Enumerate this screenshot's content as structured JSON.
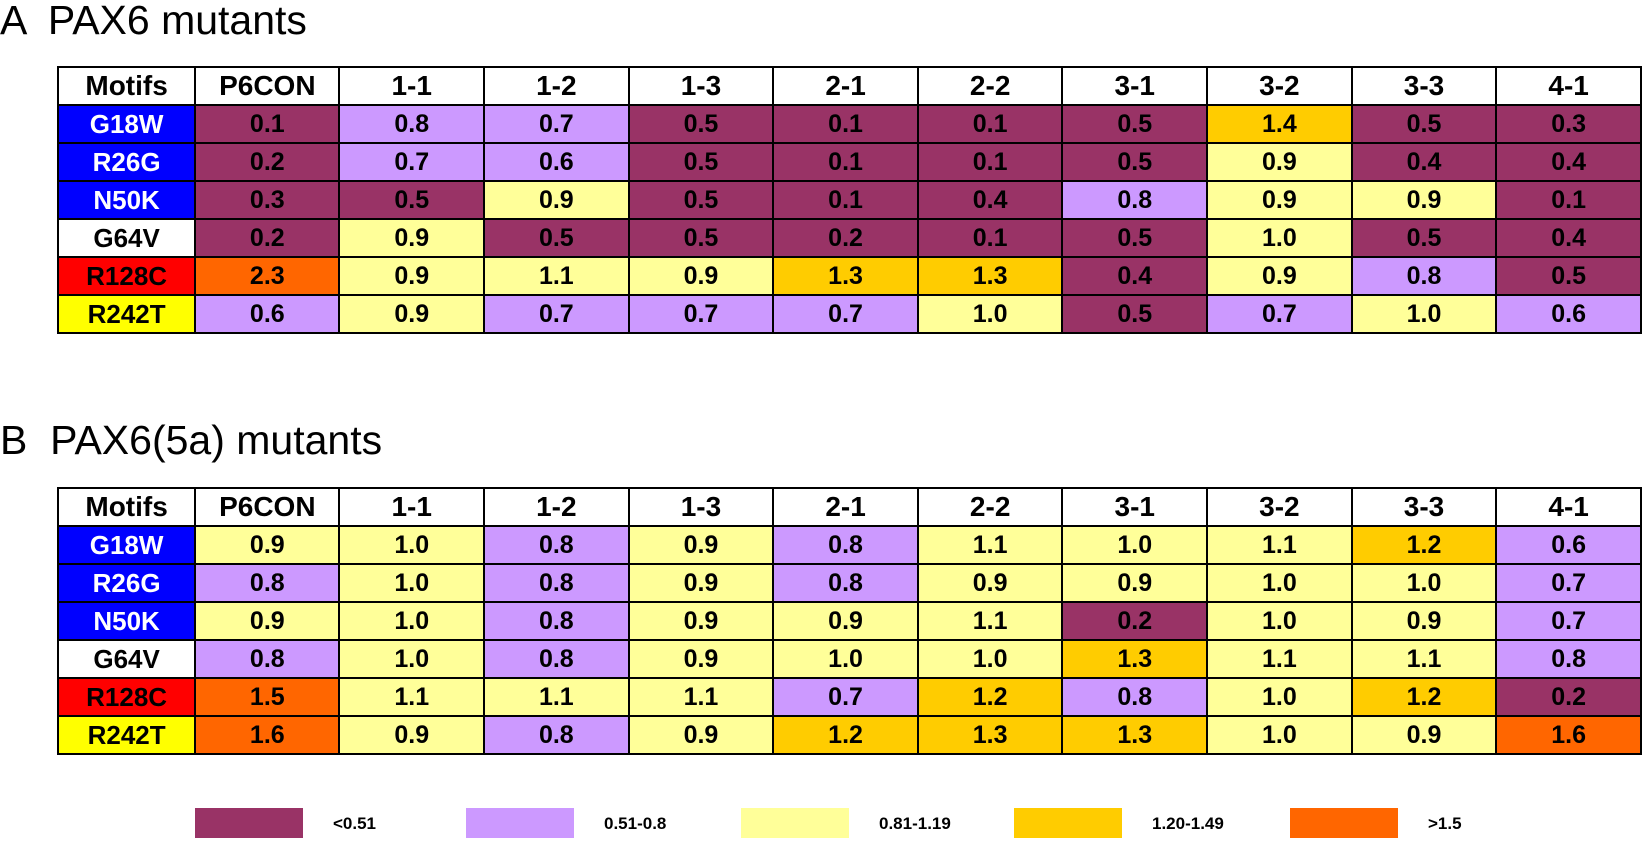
{
  "chart_data": [
    {
      "type": "heatmap",
      "panel_label": "A",
      "title": "PAX6 mutants",
      "corner_label": "Motifs",
      "columns": [
        "P6CON",
        "1-1",
        "1-2",
        "1-3",
        "2-1",
        "2-2",
        "3-1",
        "3-2",
        "3-3",
        "4-1"
      ],
      "rows": [
        {
          "label": "G18W",
          "values": [
            "0.1",
            "0.8",
            "0.7",
            "0.5",
            "0.1",
            "0.1",
            "0.5",
            "1.4",
            "0.5",
            "0.3"
          ]
        },
        {
          "label": "R26G",
          "values": [
            "0.2",
            "0.7",
            "0.6",
            "0.5",
            "0.1",
            "0.1",
            "0.5",
            "0.9",
            "0.4",
            "0.4"
          ]
        },
        {
          "label": "N50K",
          "values": [
            "0.3",
            "0.5",
            "0.9",
            "0.5",
            "0.1",
            "0.4",
            "0.8",
            "0.9",
            "0.9",
            "0.1"
          ]
        },
        {
          "label": "G64V",
          "values": [
            "0.2",
            "0.9",
            "0.5",
            "0.5",
            "0.2",
            "0.1",
            "0.5",
            "1.0",
            "0.5",
            "0.4"
          ]
        },
        {
          "label": "R128C",
          "values": [
            "2.3",
            "0.9",
            "1.1",
            "0.9",
            "1.3",
            "1.3",
            "0.4",
            "0.9",
            "0.8",
            "0.5"
          ]
        },
        {
          "label": "R242T",
          "values": [
            "0.6",
            "0.9",
            "0.7",
            "0.7",
            "0.7",
            "1.0",
            "0.5",
            "0.7",
            "1.0",
            "0.6"
          ]
        }
      ]
    },
    {
      "type": "heatmap",
      "panel_label": "B",
      "title": "PAX6(5a) mutants",
      "corner_label": "Motifs",
      "columns": [
        "P6CON",
        "1-1",
        "1-2",
        "1-3",
        "2-1",
        "2-2",
        "3-1",
        "3-2",
        "3-3",
        "4-1"
      ],
      "rows": [
        {
          "label": "G18W",
          "values": [
            "0.9",
            "1.0",
            "0.8",
            "0.9",
            "0.8",
            "1.1",
            "1.0",
            "1.1",
            "1.2",
            "0.6"
          ]
        },
        {
          "label": "R26G",
          "values": [
            "0.8",
            "1.0",
            "0.8",
            "0.9",
            "0.8",
            "0.9",
            "0.9",
            "1.0",
            "1.0",
            "0.7"
          ]
        },
        {
          "label": "N50K",
          "values": [
            "0.9",
            "1.0",
            "0.8",
            "0.9",
            "0.9",
            "1.1",
            "0.2",
            "1.0",
            "0.9",
            "0.7"
          ]
        },
        {
          "label": "G64V",
          "values": [
            "0.8",
            "1.0",
            "0.8",
            "0.9",
            "1.0",
            "1.0",
            "1.3",
            "1.1",
            "1.1",
            "0.8"
          ]
        },
        {
          "label": "R128C",
          "values": [
            "1.5",
            "1.1",
            "1.1",
            "1.1",
            "0.7",
            "1.2",
            "0.8",
            "1.0",
            "1.2",
            "0.2"
          ]
        },
        {
          "label": "R242T",
          "values": [
            "1.6",
            "0.9",
            "0.8",
            "0.9",
            "1.2",
            "1.3",
            "1.3",
            "1.0",
            "0.9",
            "1.6"
          ]
        }
      ]
    }
  ],
  "row_label_colors": {
    "G18W": {
      "bg": "#0000FF",
      "fg": "#FFFFFF"
    },
    "R26G": {
      "bg": "#0000FF",
      "fg": "#FFFFFF"
    },
    "N50K": {
      "bg": "#0000FF",
      "fg": "#FFFFFF"
    },
    "G64V": {
      "bg": "#FFFFFF",
      "fg": "#000000"
    },
    "R128C": {
      "bg": "#FF0000",
      "fg": "#000000"
    },
    "R242T": {
      "bg": "#FFFF00",
      "fg": "#000000"
    }
  },
  "legend": [
    {
      "label": "<0.51",
      "color": "#993366",
      "max": 0.505
    },
    {
      "label": "0.51-0.8",
      "color": "#CC99FF",
      "max": 0.805
    },
    {
      "label": "0.81-1.19",
      "color": "#FFFF99",
      "max": 1.195
    },
    {
      "label": "1.20-1.49",
      "color": "#FFCC00",
      "max": 1.495
    },
    {
      "label": ">1.5",
      "color": "#FF6600",
      "max": 1000
    }
  ]
}
